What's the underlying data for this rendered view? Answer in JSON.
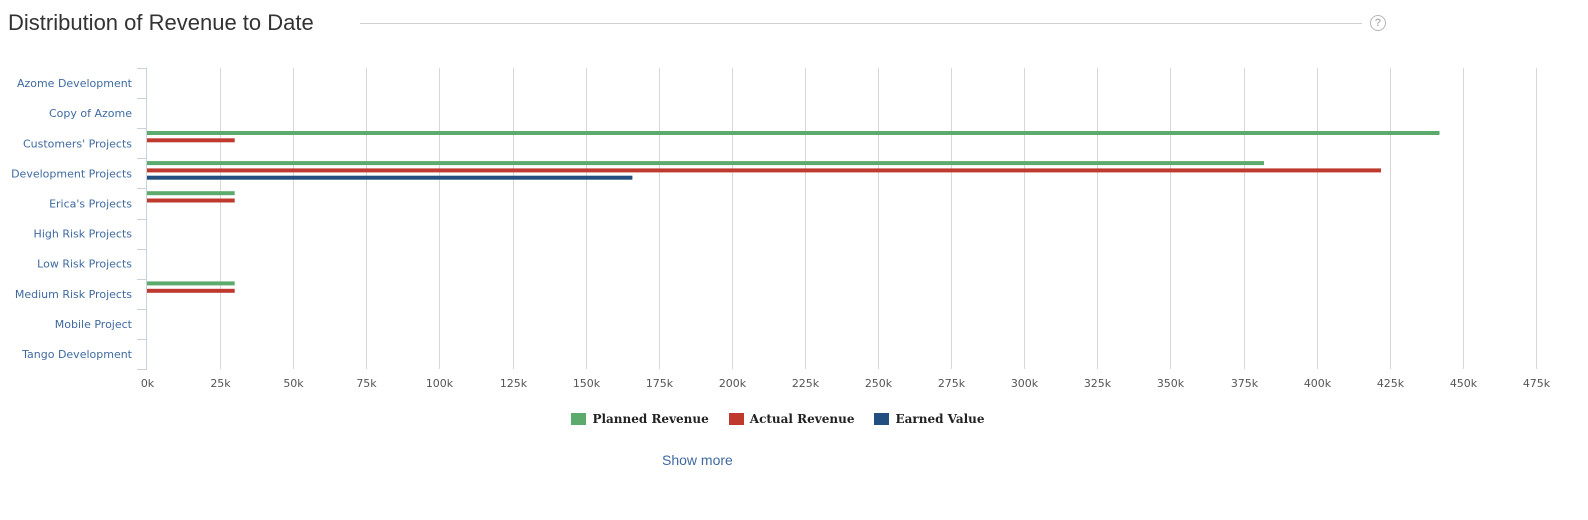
{
  "header": {
    "title": "Distribution of Revenue to Date",
    "help_icon": "question-circle-icon"
  },
  "chart_data": {
    "type": "bar",
    "orientation": "horizontal",
    "categories": [
      "Azome Development",
      "Copy of Azome",
      "Customers' Projects",
      "Development Projects",
      "Erica's Projects",
      "High Risk Projects",
      "Low Risk Projects",
      "Medium Risk Projects",
      "Mobile Project",
      "Tango Development"
    ],
    "series": [
      {
        "name": "Planned Revenue",
        "color": "#5cab6c",
        "values": [
          0,
          0,
          442000,
          382000,
          30000,
          0,
          0,
          30000,
          0,
          0
        ]
      },
      {
        "name": "Actual Revenue",
        "color": "#c0392f",
        "values": [
          0,
          0,
          30000,
          422000,
          30000,
          0,
          0,
          30000,
          0,
          0
        ]
      },
      {
        "name": "Earned Value",
        "color": "#234f80",
        "values": [
          0,
          0,
          0,
          166000,
          0,
          0,
          0,
          0,
          0,
          0
        ]
      }
    ],
    "xticks": [
      "0k",
      "25k",
      "50k",
      "75k",
      "100k",
      "125k",
      "150k",
      "175k",
      "200k",
      "225k",
      "250k",
      "275k",
      "300k",
      "325k",
      "350k",
      "375k",
      "400k",
      "425k",
      "450k",
      "475k"
    ],
    "xlim": [
      0,
      475000
    ],
    "xtick_step": 25000,
    "grid": true,
    "legend_position": "bottom-center"
  },
  "footer": {
    "show_more_label": "Show more"
  }
}
